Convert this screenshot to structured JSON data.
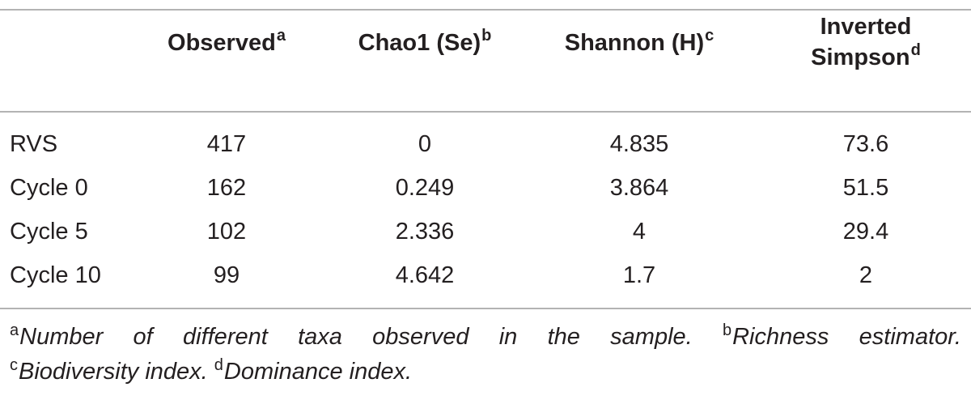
{
  "table": {
    "headers": {
      "observed": {
        "text": "Observed",
        "mark": "a"
      },
      "chao1": {
        "text": "Chao1 (Se)",
        "mark": "b"
      },
      "shannon": {
        "text": "Shannon (H)",
        "mark": "c"
      },
      "simpson": {
        "line1": "Inverted",
        "line2": "Simpson",
        "mark": "d"
      }
    },
    "rows": [
      {
        "label": "RVS",
        "observed": "417",
        "chao1": "0",
        "shannon": "4.835",
        "simpson": "73.6"
      },
      {
        "label": "Cycle 0",
        "observed": "162",
        "chao1": "0.249",
        "shannon": "3.864",
        "simpson": "51.5"
      },
      {
        "label": "Cycle 5",
        "observed": "102",
        "chao1": "2.336",
        "shannon": "4",
        "simpson": "29.4"
      },
      {
        "label": "Cycle 10",
        "observed": "99",
        "chao1": "4.642",
        "shannon": "1.7",
        "simpson": "2"
      }
    ]
  },
  "footnotes": {
    "a": {
      "mark": "a",
      "words": [
        "Number",
        "of",
        "different",
        "taxa",
        "observed",
        "in",
        "the",
        "sample."
      ]
    },
    "b": {
      "mark": "b",
      "words": [
        "Richness",
        "estimator."
      ]
    },
    "c": {
      "mark": "c",
      "text": "Biodiversity index."
    },
    "d": {
      "mark": "d",
      "text": "Dominance index."
    }
  }
}
